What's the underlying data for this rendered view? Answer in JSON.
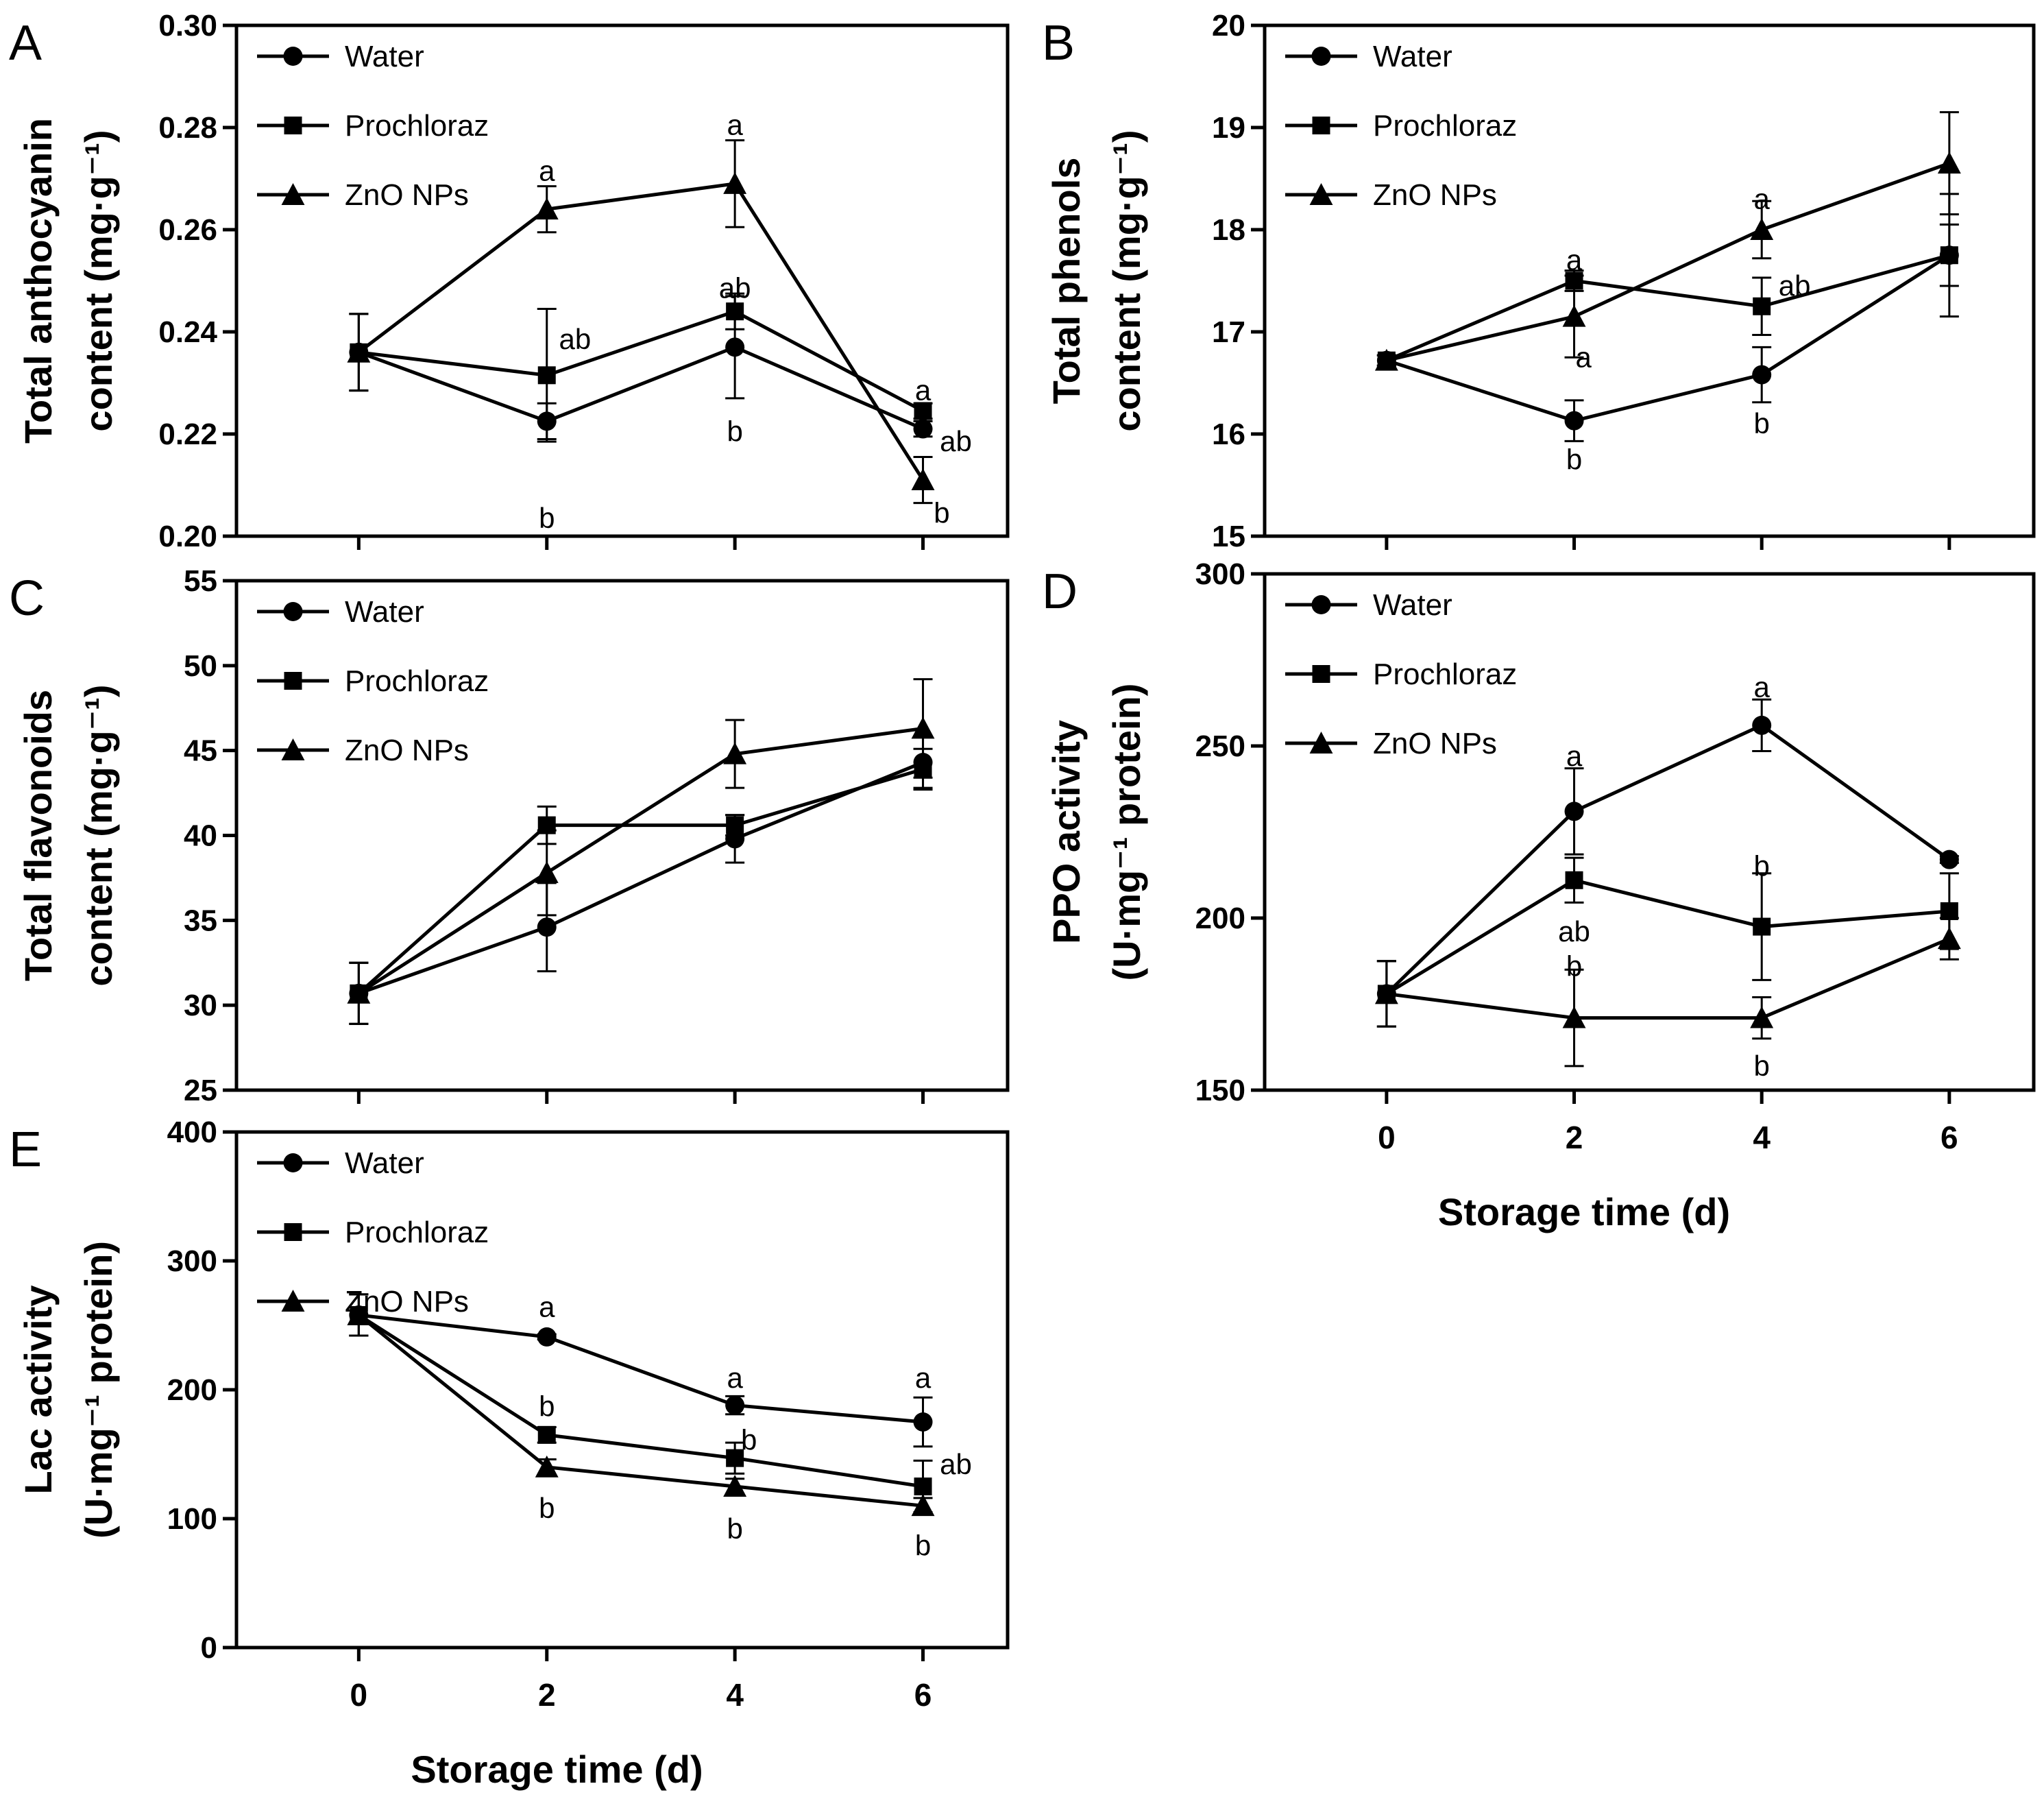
{
  "chart_data": [
    {
      "id": "A",
      "type": "line",
      "panel_label": "A",
      "ylabel": [
        "Total anthocyanin",
        "content (mg·g⁻¹)"
      ],
      "xlabel": "",
      "x": [
        0,
        2,
        4,
        6
      ],
      "ylim": [
        0.2,
        0.3
      ],
      "yticks": [
        "0.20",
        "0.22",
        "0.24",
        "0.26",
        "0.28",
        "0.30"
      ],
      "xticks": [
        "0",
        "2",
        "4",
        "6"
      ],
      "show_xtick_labels": false,
      "legend": [
        "Water",
        "Prochloraz",
        "ZnO NPs"
      ],
      "series": [
        {
          "name": "Water",
          "marker": "circle",
          "values": [
            0.236,
            0.2225,
            0.237,
            0.221
          ],
          "err": [
            0.0075,
            0.0035,
            0.01,
            0.0015
          ]
        },
        {
          "name": "Prochloraz",
          "marker": "square",
          "values": [
            0.236,
            0.2315,
            0.244,
            0.2245
          ],
          "err": [
            0.0075,
            0.013,
            0.0035,
            0.0015
          ]
        },
        {
          "name": "ZnO NPs",
          "marker": "triangle",
          "values": [
            0.236,
            0.264,
            0.269,
            0.211
          ],
          "err": [
            0.0075,
            0.0045,
            0.0085,
            0.0045
          ]
        }
      ],
      "annotations": [
        {
          "text": "a",
          "x": 2,
          "y": 0.2715
        },
        {
          "text": "ab",
          "x": 2.3,
          "y": 0.2385
        },
        {
          "text": "b",
          "x": 2,
          "y": 0.2035
        },
        {
          "text": "a",
          "x": 4,
          "y": 0.2805
        },
        {
          "text": "ab",
          "x": 4,
          "y": 0.2485
        },
        {
          "text": "b",
          "x": 4,
          "y": 0.2205
        },
        {
          "text": "a",
          "x": 6,
          "y": 0.2285
        },
        {
          "text": "ab",
          "x": 6.35,
          "y": 0.2185
        },
        {
          "text": "b",
          "x": 6.2,
          "y": 0.2045
        }
      ]
    },
    {
      "id": "B",
      "type": "line",
      "panel_label": "B",
      "ylabel": [
        "Total phenols",
        "content (mg·g⁻¹)"
      ],
      "xlabel": "",
      "x": [
        0,
        2,
        4,
        6
      ],
      "ylim": [
        15,
        20
      ],
      "yticks": [
        "15",
        "16",
        "17",
        "18",
        "19",
        "20"
      ],
      "xticks": [
        "0",
        "2",
        "4",
        "6"
      ],
      "show_xtick_labels": false,
      "legend": [
        "Water",
        "Prochloraz",
        "ZnO NPs"
      ],
      "series": [
        {
          "name": "Water",
          "marker": "circle",
          "values": [
            16.72,
            16.13,
            16.58,
            17.75
          ],
          "err": [
            0.05,
            0.2,
            0.27,
            0.6
          ]
        },
        {
          "name": "Prochloraz",
          "marker": "square",
          "values": [
            16.72,
            17.5,
            17.25,
            17.75
          ],
          "err": [
            0.05,
            0.1,
            0.28,
            0.3
          ]
        },
        {
          "name": "ZnO NPs",
          "marker": "triangle",
          "values": [
            16.72,
            17.15,
            18.0,
            18.65
          ],
          "err": [
            0.05,
            0.4,
            0.28,
            0.5
          ]
        }
      ],
      "annotations": [
        {
          "text": "a",
          "x": 2,
          "y": 17.7
        },
        {
          "text": "a",
          "x": 2.1,
          "y": 16.75
        },
        {
          "text": "b",
          "x": 2,
          "y": 15.75
        },
        {
          "text": "a",
          "x": 4,
          "y": 18.3
        },
        {
          "text": "ab",
          "x": 4.35,
          "y": 17.45
        },
        {
          "text": "b",
          "x": 4,
          "y": 16.1
        }
      ]
    },
    {
      "id": "C",
      "type": "line",
      "panel_label": "C",
      "ylabel": [
        "Total flavonoids",
        "content (mg·g⁻¹)"
      ],
      "xlabel": "",
      "x": [
        0,
        2,
        4,
        6
      ],
      "ylim": [
        25,
        55
      ],
      "yticks": [
        "25",
        "30",
        "35",
        "40",
        "45",
        "50",
        "55"
      ],
      "xticks": [
        "0",
        "2",
        "4",
        "6"
      ],
      "show_xtick_labels": false,
      "legend": [
        "Water",
        "Prochloraz",
        "ZnO NPs"
      ],
      "series": [
        {
          "name": "Water",
          "marker": "circle",
          "values": [
            30.7,
            34.6,
            39.8,
            44.3
          ],
          "err": [
            1.8,
            2.6,
            1.4,
            1.5
          ]
        },
        {
          "name": "Prochloraz",
          "marker": "square",
          "values": [
            30.7,
            40.6,
            40.6,
            43.9
          ],
          "err": [
            1.8,
            1.1,
            0.6,
            1.2
          ]
        },
        {
          "name": "ZnO NPs",
          "marker": "triangle",
          "values": [
            30.7,
            37.8,
            44.8,
            46.3
          ],
          "err": [
            1.8,
            2.5,
            2.0,
            2.9
          ]
        }
      ],
      "annotations": []
    },
    {
      "id": "D",
      "type": "line",
      "panel_label": "D",
      "ylabel": [
        "PPO activity",
        "(U·mg⁻¹ protein)"
      ],
      "xlabel": "Storage time (d)",
      "x": [
        0,
        2,
        4,
        6
      ],
      "ylim": [
        150,
        300
      ],
      "yticks": [
        "150",
        "200",
        "250",
        "300"
      ],
      "xticks": [
        "0",
        "2",
        "4",
        "6"
      ],
      "show_xtick_labels": true,
      "legend": [
        "Water",
        "Prochloraz",
        "ZnO NPs"
      ],
      "series": [
        {
          "name": "Water",
          "marker": "circle",
          "values": [
            178,
            231,
            256,
            217
          ],
          "err": [
            9.5,
            12.5,
            7.5,
            1.0
          ]
        },
        {
          "name": "Prochloraz",
          "marker": "square",
          "values": [
            178,
            211,
            197.5,
            202
          ],
          "err": [
            9.5,
            6.5,
            15.5,
            11.0
          ]
        },
        {
          "name": "ZnO NPs",
          "marker": "triangle",
          "values": [
            178,
            171,
            171,
            194
          ],
          "err": [
            9.5,
            14.0,
            6.0,
            6.0
          ]
        }
      ],
      "annotations": [
        {
          "text": "a",
          "x": 2,
          "y": 247
        },
        {
          "text": "ab",
          "x": 2,
          "y": 196
        },
        {
          "text": "b",
          "x": 2,
          "y": 186
        },
        {
          "text": "a",
          "x": 4,
          "y": 267
        },
        {
          "text": "b",
          "x": 4,
          "y": 215
        },
        {
          "text": "b",
          "x": 4,
          "y": 157
        }
      ]
    },
    {
      "id": "E",
      "type": "line",
      "panel_label": "E",
      "ylabel": [
        "Lac activity",
        "(U·mg⁻¹ protein)"
      ],
      "xlabel": "Storage time (d)",
      "x": [
        0,
        2,
        4,
        6
      ],
      "ylim": [
        0,
        400
      ],
      "yticks": [
        "0",
        "100",
        "200",
        "300",
        "400"
      ],
      "xticks": [
        "0",
        "2",
        "4",
        "6"
      ],
      "show_xtick_labels": true,
      "legend": [
        "Water",
        "Prochloraz",
        "ZnO NPs"
      ],
      "series": [
        {
          "name": "Water",
          "marker": "circle",
          "values": [
            258,
            241,
            188,
            175
          ],
          "err": [
            16,
            2,
            7,
            19
          ]
        },
        {
          "name": "Prochloraz",
          "marker": "square",
          "values": [
            258,
            165,
            147,
            125
          ],
          "err": [
            16,
            6,
            12,
            20
          ]
        },
        {
          "name": "ZnO NPs",
          "marker": "triangle",
          "values": [
            258,
            140,
            125,
            110
          ],
          "err": [
            16,
            6,
            6,
            6
          ]
        }
      ],
      "annotations": [
        {
          "text": "a",
          "x": 2,
          "y": 264
        },
        {
          "text": "b",
          "x": 2,
          "y": 187
        },
        {
          "text": "b",
          "x": 2,
          "y": 108
        },
        {
          "text": "a",
          "x": 4,
          "y": 209
        },
        {
          "text": "b",
          "x": 4.15,
          "y": 161
        },
        {
          "text": "b",
          "x": 4,
          "y": 92
        },
        {
          "text": "a",
          "x": 6,
          "y": 209
        },
        {
          "text": "ab",
          "x": 6.35,
          "y": 142
        },
        {
          "text": "b",
          "x": 6,
          "y": 79
        }
      ]
    }
  ]
}
